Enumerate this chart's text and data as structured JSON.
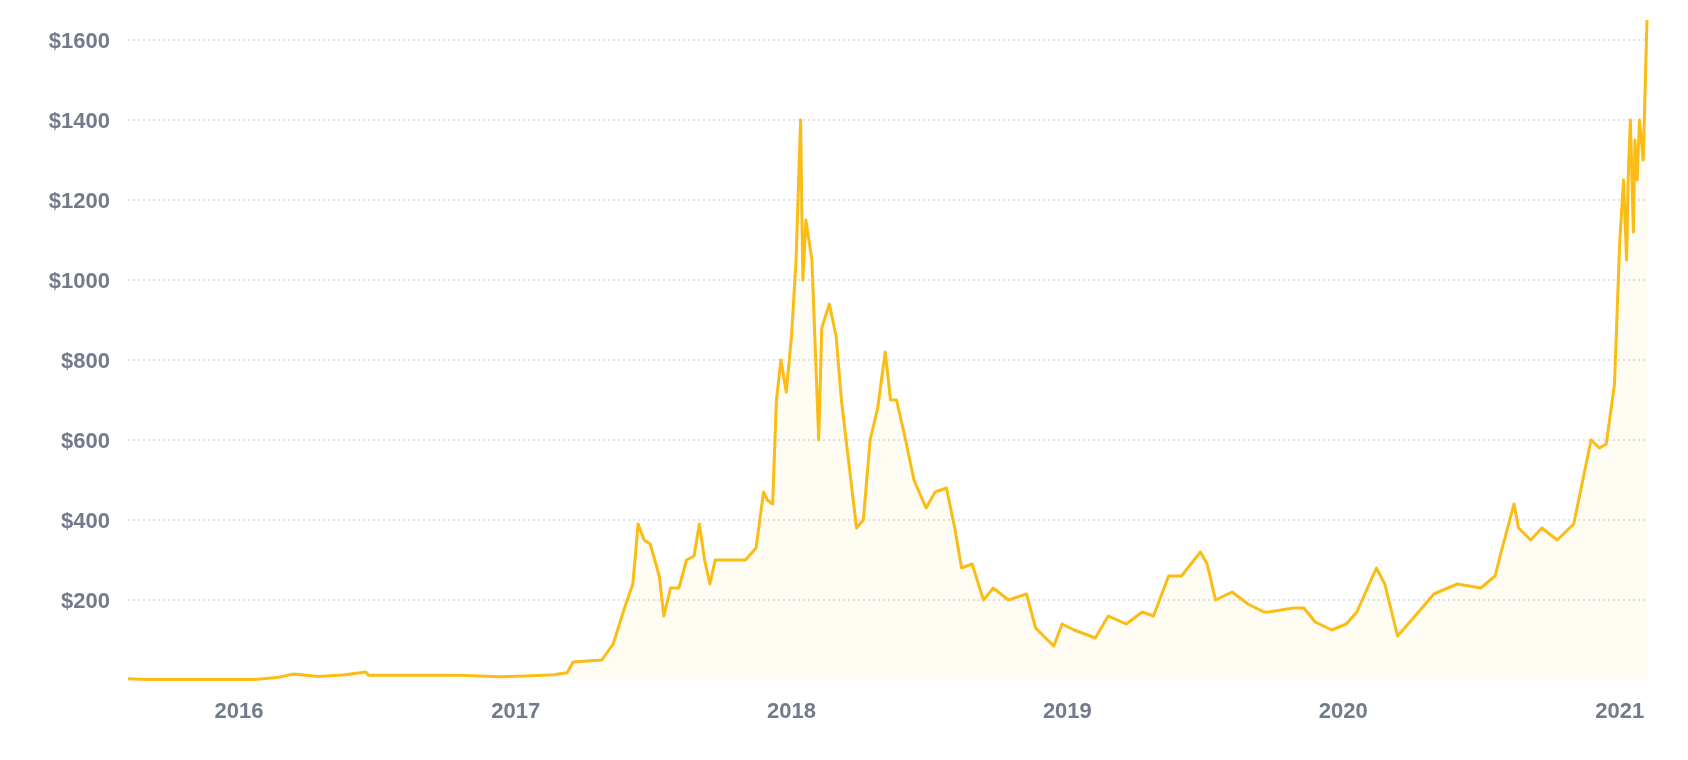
{
  "chart_data": {
    "type": "area",
    "x": [
      "2015-08-07",
      "2015-09-01",
      "2015-10-20",
      "2015-12-15",
      "2016-01-20",
      "2016-02-20",
      "2016-03-13",
      "2016-04-15",
      "2016-05-20",
      "2016-06-17",
      "2016-06-20",
      "2016-07-25",
      "2016-09-01",
      "2016-10-20",
      "2016-12-10",
      "2017-01-15",
      "2017-02-20",
      "2017-03-10",
      "2017-03-18",
      "2017-04-10",
      "2017-04-25",
      "2017-05-10",
      "2017-05-25",
      "2017-06-05",
      "2017-06-12",
      "2017-06-20",
      "2017-06-28",
      "2017-07-10",
      "2017-07-16",
      "2017-07-25",
      "2017-08-05",
      "2017-08-15",
      "2017-08-25",
      "2017-09-01",
      "2017-09-08",
      "2017-09-15",
      "2017-09-22",
      "2017-10-05",
      "2017-10-20",
      "2017-11-01",
      "2017-11-15",
      "2017-11-25",
      "2017-11-30",
      "2017-12-07",
      "2017-12-12",
      "2017-12-18",
      "2017-12-25",
      "2018-01-01",
      "2018-01-07",
      "2018-01-13",
      "2018-01-16",
      "2018-01-20",
      "2018-01-28",
      "2018-02-06",
      "2018-02-10",
      "2018-02-20",
      "2018-03-01",
      "2018-03-08",
      "2018-03-18",
      "2018-03-28",
      "2018-04-06",
      "2018-04-15",
      "2018-04-25",
      "2018-05-05",
      "2018-05-12",
      "2018-05-20",
      "2018-06-01",
      "2018-06-12",
      "2018-06-28",
      "2018-07-10",
      "2018-07-25",
      "2018-08-05",
      "2018-08-14",
      "2018-08-28",
      "2018-09-12",
      "2018-09-25",
      "2018-10-15",
      "2018-11-08",
      "2018-11-20",
      "2018-12-06",
      "2018-12-14",
      "2018-12-25",
      "2019-01-10",
      "2019-02-07",
      "2019-02-24",
      "2019-03-20",
      "2019-04-10",
      "2019-04-25",
      "2019-05-15",
      "2019-06-01",
      "2019-06-26",
      "2019-07-05",
      "2019-07-16",
      "2019-08-07",
      "2019-08-28",
      "2019-09-18",
      "2019-09-24",
      "2019-10-27",
      "2019-11-10",
      "2019-11-25",
      "2019-12-17",
      "2020-01-05",
      "2020-01-19",
      "2020-02-14",
      "2020-02-25",
      "2020-03-13",
      "2020-04-05",
      "2020-04-30",
      "2020-05-31",
      "2020-07-01",
      "2020-07-20",
      "2020-07-28",
      "2020-08-14",
      "2020-08-20",
      "2020-09-05",
      "2020-09-20",
      "2020-10-10",
      "2020-11-01",
      "2020-11-24",
      "2020-12-05",
      "2020-12-14",
      "2020-12-25",
      "2021-01-01",
      "2021-01-06",
      "2021-01-10",
      "2021-01-12",
      "2021-01-15",
      "2021-01-19",
      "2021-01-21",
      "2021-01-24",
      "2021-01-27",
      "2021-02-01",
      "2021-02-06"
    ],
    "series": [
      {
        "color": "#fbbc15",
        "values": [
          3,
          1,
          1,
          1,
          1,
          6,
          15,
          9,
          13,
          20,
          12,
          12,
          12,
          12,
          8,
          10,
          13,
          18,
          45,
          48,
          50,
          90,
          180,
          240,
          390,
          350,
          340,
          260,
          160,
          230,
          230,
          300,
          310,
          390,
          300,
          240,
          300,
          300,
          300,
          300,
          330,
          470,
          450,
          440,
          700,
          800,
          720,
          860,
          1050,
          1400,
          1000,
          1150,
          1050,
          600,
          880,
          940,
          860,
          700,
          540,
          380,
          400,
          600,
          680,
          820,
          700,
          700,
          600,
          500,
          430,
          470,
          480,
          380,
          280,
          290,
          200,
          230,
          200,
          215,
          130,
          100,
          85,
          140,
          125,
          105,
          160,
          140,
          170,
          160,
          260,
          260,
          320,
          290,
          200,
          220,
          190,
          170,
          170,
          180,
          180,
          145,
          125,
          140,
          170,
          280,
          240,
          110,
          160,
          215,
          240,
          230,
          260,
          320,
          440,
          380,
          350,
          380,
          350,
          390,
          600,
          580,
          590,
          740,
          1100,
          1250,
          1050,
          1250,
          1400,
          1120,
          1350,
          1250,
          1400,
          1300,
          1650
        ]
      }
    ],
    "ylim": [
      0,
      1700
    ],
    "yticks": [
      {
        "value": 200,
        "label": "$200"
      },
      {
        "value": 400,
        "label": "$400"
      },
      {
        "value": 600,
        "label": "$600"
      },
      {
        "value": 800,
        "label": "$800"
      },
      {
        "value": 1000,
        "label": "$1000"
      },
      {
        "value": 1200,
        "label": "$1200"
      },
      {
        "value": 1400,
        "label": "$1400"
      },
      {
        "value": 1600,
        "label": "$1600"
      }
    ],
    "xlim": [
      "2015-08-07",
      "2021-02-06"
    ],
    "xticks": [
      "2016",
      "2017",
      "2018",
      "2019",
      "2020",
      "2021"
    ],
    "grid": "y",
    "marker": "none",
    "line_style": "solid"
  }
}
